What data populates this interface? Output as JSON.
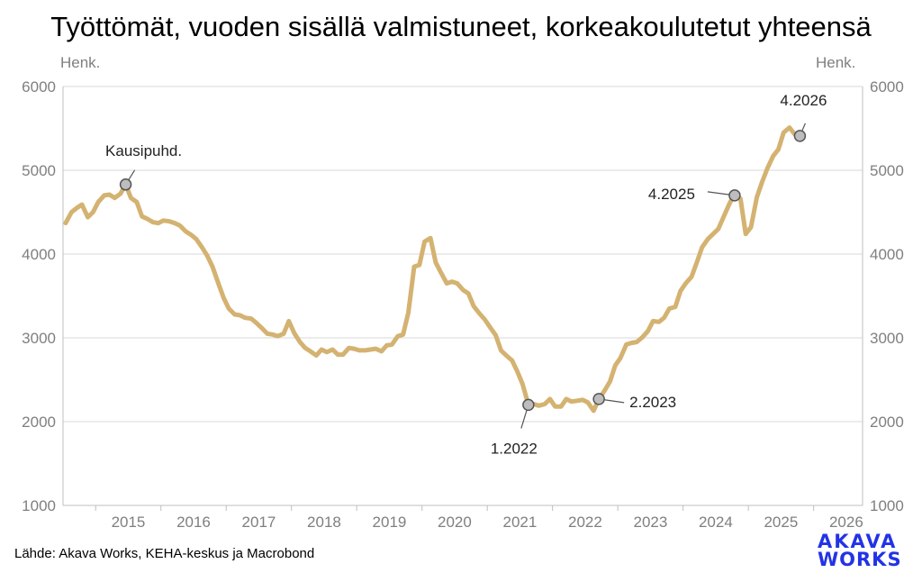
{
  "title": "Työttömät, vuoden sisällä valmistuneet, korkeakoulutetut yhteensä",
  "unit_left": "Henk.",
  "unit_right": "Henk.",
  "source": "Lähde: Akava Works, KEHA-keskus ja Macrobond",
  "logo": {
    "line1": "AKAVA",
    "line2": "WORKS",
    "color": "#2233e6"
  },
  "chart_data": {
    "type": "line",
    "ylabel": "Henk.",
    "ylim": [
      1000,
      6000
    ],
    "yticks": [
      1000,
      2000,
      3000,
      4000,
      5000,
      6000
    ],
    "xlim": [
      2014.5,
      2026.75
    ],
    "xticks": [
      "2015",
      "2016",
      "2017",
      "2018",
      "2019",
      "2020",
      "2021",
      "2022",
      "2023",
      "2024",
      "2025",
      "2026"
    ],
    "grid": "horizontal",
    "series": [
      {
        "color": "#d4b271",
        "points": [
          [
            2014.54,
            4370
          ],
          [
            2014.63,
            4500
          ],
          [
            2014.71,
            4550
          ],
          [
            2014.79,
            4590
          ],
          [
            2014.88,
            4440
          ],
          [
            2014.96,
            4500
          ],
          [
            2015.04,
            4620
          ],
          [
            2015.13,
            4700
          ],
          [
            2015.21,
            4710
          ],
          [
            2015.29,
            4670
          ],
          [
            2015.38,
            4720
          ],
          [
            2015.46,
            4830
          ],
          [
            2015.54,
            4670
          ],
          [
            2015.63,
            4620
          ],
          [
            2015.71,
            4450
          ],
          [
            2015.79,
            4420
          ],
          [
            2015.88,
            4380
          ],
          [
            2015.96,
            4370
          ],
          [
            2016.04,
            4400
          ],
          [
            2016.13,
            4390
          ],
          [
            2016.21,
            4370
          ],
          [
            2016.29,
            4340
          ],
          [
            2016.38,
            4270
          ],
          [
            2016.46,
            4230
          ],
          [
            2016.54,
            4180
          ],
          [
            2016.63,
            4080
          ],
          [
            2016.71,
            3980
          ],
          [
            2016.79,
            3850
          ],
          [
            2016.88,
            3650
          ],
          [
            2016.96,
            3480
          ],
          [
            2017.04,
            3350
          ],
          [
            2017.13,
            3280
          ],
          [
            2017.21,
            3270
          ],
          [
            2017.29,
            3240
          ],
          [
            2017.38,
            3230
          ],
          [
            2017.46,
            3180
          ],
          [
            2017.54,
            3120
          ],
          [
            2017.63,
            3050
          ],
          [
            2017.71,
            3040
          ],
          [
            2017.79,
            3020
          ],
          [
            2017.88,
            3050
          ],
          [
            2017.96,
            3200
          ],
          [
            2018.04,
            3060
          ],
          [
            2018.13,
            2950
          ],
          [
            2018.21,
            2880
          ],
          [
            2018.29,
            2840
          ],
          [
            2018.38,
            2790
          ],
          [
            2018.46,
            2860
          ],
          [
            2018.54,
            2830
          ],
          [
            2018.63,
            2860
          ],
          [
            2018.71,
            2800
          ],
          [
            2018.79,
            2800
          ],
          [
            2018.88,
            2880
          ],
          [
            2018.96,
            2870
          ],
          [
            2019.04,
            2850
          ],
          [
            2019.13,
            2850
          ],
          [
            2019.21,
            2860
          ],
          [
            2019.29,
            2870
          ],
          [
            2019.38,
            2840
          ],
          [
            2019.46,
            2910
          ],
          [
            2019.54,
            2920
          ],
          [
            2019.63,
            3020
          ],
          [
            2019.71,
            3040
          ],
          [
            2019.79,
            3300
          ],
          [
            2019.88,
            3850
          ],
          [
            2019.96,
            3870
          ],
          [
            2020.04,
            4150
          ],
          [
            2020.13,
            4190
          ],
          [
            2020.21,
            3900
          ],
          [
            2020.29,
            3780
          ],
          [
            2020.38,
            3650
          ],
          [
            2020.46,
            3670
          ],
          [
            2020.54,
            3650
          ],
          [
            2020.63,
            3570
          ],
          [
            2020.71,
            3530
          ],
          [
            2020.79,
            3380
          ],
          [
            2020.88,
            3290
          ],
          [
            2020.96,
            3220
          ],
          [
            2021.04,
            3130
          ],
          [
            2021.13,
            3030
          ],
          [
            2021.21,
            2850
          ],
          [
            2021.29,
            2790
          ],
          [
            2021.38,
            2730
          ],
          [
            2021.46,
            2600
          ],
          [
            2021.54,
            2450
          ],
          [
            2021.63,
            2200
          ],
          [
            2021.71,
            2210
          ],
          [
            2021.79,
            2190
          ],
          [
            2021.88,
            2210
          ],
          [
            2021.96,
            2270
          ],
          [
            2022.04,
            2180
          ],
          [
            2022.13,
            2180
          ],
          [
            2022.21,
            2270
          ],
          [
            2022.29,
            2240
          ],
          [
            2022.38,
            2250
          ],
          [
            2022.46,
            2260
          ],
          [
            2022.54,
            2230
          ],
          [
            2022.63,
            2130
          ],
          [
            2022.71,
            2270
          ],
          [
            2022.79,
            2360
          ],
          [
            2022.88,
            2480
          ],
          [
            2022.96,
            2670
          ],
          [
            2023.04,
            2760
          ],
          [
            2023.13,
            2920
          ],
          [
            2023.21,
            2940
          ],
          [
            2023.29,
            2950
          ],
          [
            2023.38,
            3010
          ],
          [
            2023.46,
            3080
          ],
          [
            2023.54,
            3200
          ],
          [
            2023.63,
            3190
          ],
          [
            2023.71,
            3240
          ],
          [
            2023.79,
            3350
          ],
          [
            2023.88,
            3370
          ],
          [
            2023.96,
            3560
          ],
          [
            2024.04,
            3650
          ],
          [
            2024.13,
            3730
          ],
          [
            2024.21,
            3900
          ],
          [
            2024.29,
            4080
          ],
          [
            2024.38,
            4180
          ],
          [
            2024.46,
            4240
          ],
          [
            2024.54,
            4300
          ],
          [
            2024.63,
            4460
          ],
          [
            2024.71,
            4600
          ],
          [
            2024.79,
            4720
          ],
          [
            2024.88,
            4660
          ],
          [
            2024.96,
            4240
          ],
          [
            2025.04,
            4320
          ],
          [
            2025.13,
            4680
          ],
          [
            2025.21,
            4860
          ],
          [
            2025.29,
            5020
          ],
          [
            2025.38,
            5170
          ],
          [
            2025.46,
            5250
          ],
          [
            2025.54,
            5450
          ],
          [
            2025.63,
            5510
          ],
          [
            2025.71,
            5430
          ],
          [
            2025.79,
            5410
          ]
        ]
      }
    ],
    "annotations": [
      {
        "label": "Kausipuhd.",
        "x": 2015.46,
        "y": 4830
      },
      {
        "label": "1.2022",
        "x": 2021.63,
        "y": 2200
      },
      {
        "label": "2.2023",
        "x": 2022.71,
        "y": 2270
      },
      {
        "label": "4.2025",
        "x": 2024.79,
        "y": 4700
      },
      {
        "label": "4.2026",
        "x": 2025.79,
        "y": 5410
      }
    ]
  }
}
